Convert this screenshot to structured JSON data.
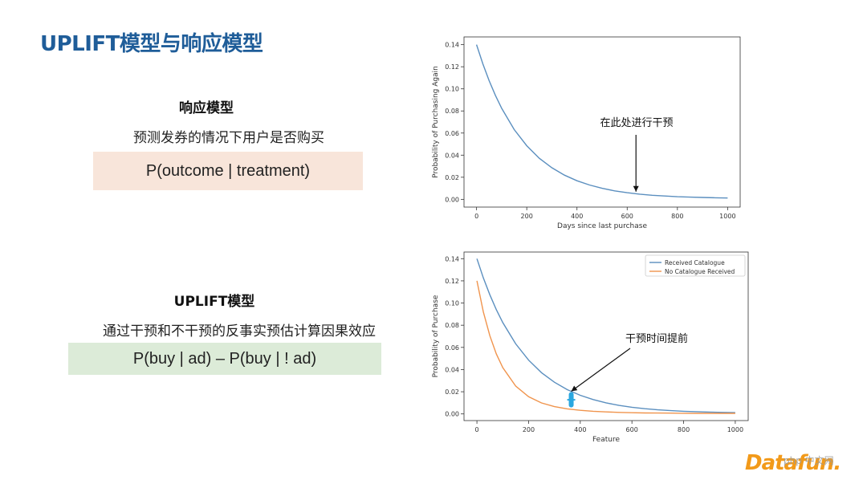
{
  "slide": {
    "title": "UPLIFT模型与响应模型"
  },
  "response_model": {
    "title": "响应模型",
    "description": "预测发券的情况下用户是否购买",
    "formula": "P(outcome | treatment)"
  },
  "uplift_model": {
    "title": "UPLIFT模型",
    "description": "通过干预和不干预的反事实预估计算因果效应",
    "formula": "P(buy | ad) – P(buy | ! ad)"
  },
  "logo": {
    "mark": "Datafun.",
    "watermark": "php 中文网"
  },
  "chart_data": [
    {
      "type": "line",
      "xlabel": "Days since last purchase",
      "ylabel": "Probability of Purchasing Again",
      "xlim": [
        -50,
        1050
      ],
      "ylim": [
        -0.007,
        0.147
      ],
      "xticks": [
        0,
        200,
        400,
        600,
        800,
        1000
      ],
      "xtick_labels": [
        "0",
        "200",
        "400",
        "600",
        "800",
        "1000"
      ],
      "yticks": [
        0.0,
        0.02,
        0.04,
        0.06,
        0.08,
        0.1,
        0.12,
        0.14
      ],
      "ytick_labels": [
        "0.00",
        "0.02",
        "0.04",
        "0.06",
        "0.08",
        "0.10",
        "0.12",
        "0.14"
      ],
      "grid": false,
      "series": [
        {
          "color": "#5b8fbf",
          "x": [
            0,
            25,
            50,
            75,
            100,
            150,
            200,
            250,
            300,
            350,
            400,
            450,
            500,
            550,
            600,
            650,
            700,
            750,
            800,
            850,
            900,
            950,
            1000
          ],
          "y": [
            0.14,
            0.1226,
            0.1074,
            0.0941,
            0.0824,
            0.0632,
            0.0485,
            0.0372,
            0.0286,
            0.0219,
            0.0168,
            0.013,
            0.01,
            0.0077,
            0.006,
            0.0047,
            0.0037,
            0.003,
            0.0024,
            0.002,
            0.0017,
            0.0014,
            0.0012
          ]
        }
      ],
      "annotation": {
        "text": "在此处进行干预",
        "x": 635,
        "y": 0.0055
      }
    },
    {
      "type": "line",
      "xlabel": "Feature",
      "ylabel": "Probability of Purchase",
      "xlim": [
        -50,
        1050
      ],
      "ylim": [
        -0.006,
        0.146
      ],
      "xticks": [
        0,
        200,
        400,
        600,
        800,
        1000
      ],
      "xtick_labels": [
        "0",
        "200",
        "400",
        "600",
        "800",
        "1000"
      ],
      "yticks": [
        0.0,
        0.02,
        0.04,
        0.06,
        0.08,
        0.1,
        0.12,
        0.14
      ],
      "ytick_labels": [
        "0.00",
        "0.02",
        "0.04",
        "0.06",
        "0.08",
        "0.10",
        "0.12",
        "0.14"
      ],
      "grid": false,
      "legend": "top-right",
      "series": [
        {
          "name": "Received Catalogue",
          "color": "#5b8fbf",
          "x": [
            0,
            25,
            50,
            75,
            100,
            150,
            200,
            250,
            300,
            350,
            400,
            450,
            500,
            550,
            600,
            650,
            700,
            750,
            800,
            850,
            900,
            950,
            1000
          ],
          "y": [
            0.14,
            0.1226,
            0.1074,
            0.0941,
            0.0824,
            0.0632,
            0.0485,
            0.0372,
            0.0286,
            0.0219,
            0.0168,
            0.013,
            0.01,
            0.0077,
            0.006,
            0.0047,
            0.0037,
            0.003,
            0.0024,
            0.002,
            0.0017,
            0.0014,
            0.0012
          ]
        },
        {
          "name": "No Catalogue Received",
          "color": "#f0944d",
          "x": [
            0,
            25,
            50,
            75,
            100,
            150,
            200,
            250,
            300,
            350,
            400,
            450,
            500,
            550,
            600,
            650,
            700,
            750,
            800,
            850,
            900,
            950,
            1000
          ],
          "y": [
            0.12,
            0.0919,
            0.0705,
            0.0542,
            0.0418,
            0.0251,
            0.0155,
            0.0099,
            0.0066,
            0.0046,
            0.0033,
            0.0024,
            0.0018,
            0.0014,
            0.0011,
            0.0009,
            0.0008,
            0.0007,
            0.0006,
            0.0005,
            0.0005,
            0.0005,
            0.0005
          ]
        }
      ],
      "marker": {
        "x": 365,
        "y_top": 0.0175,
        "y_bottom": 0.008,
        "color": "#2aa7e0"
      },
      "annotation": {
        "text": "干预时间提前",
        "x": 365,
        "y": 0.019
      }
    }
  ]
}
